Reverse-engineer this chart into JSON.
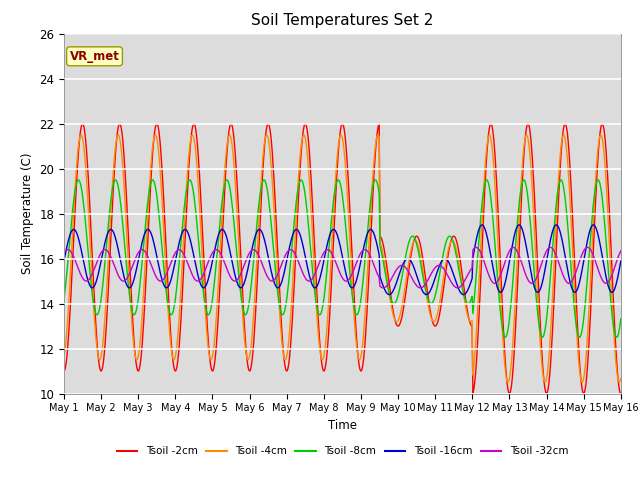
{
  "title": "Soil Temperatures Set 2",
  "xlabel": "Time",
  "ylabel": "Soil Temperature (C)",
  "ylim": [
    10,
    26
  ],
  "xlim_days": 15,
  "annotation": "VR_met",
  "annotation_color": "#8B0000",
  "annotation_bg": "#FFFFC0",
  "background_color": "#DCDCDC",
  "grid_color": "white",
  "series": [
    {
      "label": "Tsoil -2cm",
      "color": "#FF0000"
    },
    {
      "label": "Tsoil -4cm",
      "color": "#FF8C00"
    },
    {
      "label": "Tsoil -8cm",
      "color": "#00CC00"
    },
    {
      "label": "Tsoil -16cm",
      "color": "#0000CC"
    },
    {
      "label": "Tsoil -32cm",
      "color": "#CC00CC"
    }
  ],
  "xtick_labels": [
    "May 1",
    "May 2",
    "May 3",
    "May 4",
    "May 5",
    "May 6",
    "May 7",
    "May 8",
    "May 9",
    "May 10",
    "May 11",
    "May 12",
    "May 13",
    "May 14",
    "May 15",
    "May 16"
  ],
  "ytick_values": [
    10,
    12,
    14,
    16,
    18,
    20,
    22,
    24,
    26
  ]
}
